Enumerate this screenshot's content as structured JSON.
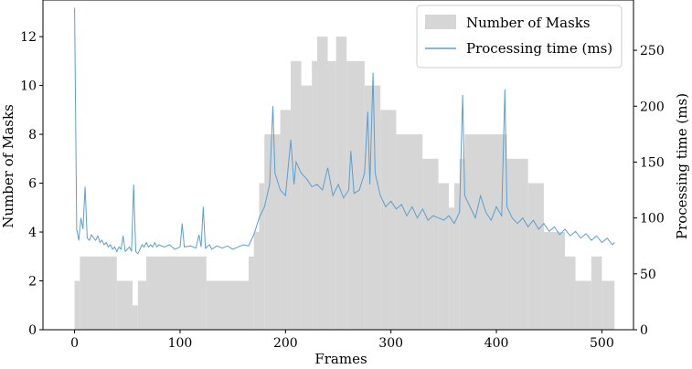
{
  "chart_data": {
    "type": "bar+line",
    "xlabel": "Frames",
    "ylabel_left": "Number of Masks",
    "ylabel_right": "Processing time (ms)",
    "xlim": [
      -30,
      530
    ],
    "ylim_left": [
      0,
      13.5
    ],
    "ylim_right": [
      0,
      295
    ],
    "x_ticks": [
      0,
      100,
      200,
      300,
      400,
      500
    ],
    "y_left_ticks": [
      0,
      2,
      4,
      6,
      8,
      10,
      12
    ],
    "y_right_ticks": [
      0,
      50,
      100,
      150,
      200,
      250
    ],
    "legend": {
      "position": "top-right",
      "entries": [
        "Number of Masks",
        "Processing time (ms)"
      ]
    },
    "colors": {
      "masks": "#d6d6d6",
      "time": "#5b9fd0"
    },
    "series": [
      {
        "name": "Number of Masks",
        "kind": "bar",
        "segments": [
          {
            "from": 0,
            "to": 5,
            "value": 2
          },
          {
            "from": 5,
            "to": 40,
            "value": 3
          },
          {
            "from": 40,
            "to": 55,
            "value": 2
          },
          {
            "from": 55,
            "to": 60,
            "value": 1
          },
          {
            "from": 60,
            "to": 68,
            "value": 2
          },
          {
            "from": 68,
            "to": 125,
            "value": 3
          },
          {
            "from": 125,
            "to": 165,
            "value": 2
          },
          {
            "from": 165,
            "to": 170,
            "value": 3
          },
          {
            "from": 170,
            "to": 175,
            "value": 4
          },
          {
            "from": 175,
            "to": 180,
            "value": 6
          },
          {
            "from": 180,
            "to": 195,
            "value": 8
          },
          {
            "from": 195,
            "to": 205,
            "value": 9
          },
          {
            "from": 205,
            "to": 215,
            "value": 11
          },
          {
            "from": 215,
            "to": 225,
            "value": 10
          },
          {
            "from": 225,
            "to": 230,
            "value": 11
          },
          {
            "from": 230,
            "to": 240,
            "value": 12
          },
          {
            "from": 240,
            "to": 248,
            "value": 11
          },
          {
            "from": 248,
            "to": 258,
            "value": 12
          },
          {
            "from": 258,
            "to": 275,
            "value": 11
          },
          {
            "from": 275,
            "to": 290,
            "value": 10
          },
          {
            "from": 290,
            "to": 305,
            "value": 9
          },
          {
            "from": 305,
            "to": 330,
            "value": 8
          },
          {
            "from": 330,
            "to": 345,
            "value": 7
          },
          {
            "from": 345,
            "to": 355,
            "value": 6
          },
          {
            "from": 355,
            "to": 360,
            "value": 5
          },
          {
            "from": 360,
            "to": 365,
            "value": 6
          },
          {
            "from": 365,
            "to": 370,
            "value": 7
          },
          {
            "from": 370,
            "to": 410,
            "value": 8
          },
          {
            "from": 410,
            "to": 430,
            "value": 7
          },
          {
            "from": 430,
            "to": 445,
            "value": 6
          },
          {
            "from": 445,
            "to": 465,
            "value": 4
          },
          {
            "from": 465,
            "to": 475,
            "value": 3
          },
          {
            "from": 475,
            "to": 490,
            "value": 2
          },
          {
            "from": 490,
            "to": 500,
            "value": 3
          },
          {
            "from": 500,
            "to": 512,
            "value": 2
          }
        ]
      },
      {
        "name": "Processing time (ms)",
        "kind": "line",
        "points": [
          [
            0,
            288
          ],
          [
            2,
            90
          ],
          [
            4,
            80
          ],
          [
            6,
            100
          ],
          [
            8,
            90
          ],
          [
            10,
            128
          ],
          [
            12,
            82
          ],
          [
            14,
            80
          ],
          [
            16,
            85
          ],
          [
            18,
            82
          ],
          [
            20,
            80
          ],
          [
            22,
            84
          ],
          [
            24,
            78
          ],
          [
            26,
            80
          ],
          [
            28,
            76
          ],
          [
            30,
            78
          ],
          [
            32,
            74
          ],
          [
            34,
            76
          ],
          [
            36,
            72
          ],
          [
            38,
            74
          ],
          [
            40,
            70
          ],
          [
            42,
            74
          ],
          [
            44,
            72
          ],
          [
            46,
            84
          ],
          [
            48,
            70
          ],
          [
            50,
            72
          ],
          [
            52,
            74
          ],
          [
            54,
            70
          ],
          [
            56,
            130
          ],
          [
            58,
            70
          ],
          [
            60,
            68
          ],
          [
            62,
            72
          ],
          [
            64,
            76
          ],
          [
            66,
            74
          ],
          [
            68,
            78
          ],
          [
            70,
            74
          ],
          [
            72,
            76
          ],
          [
            74,
            74
          ],
          [
            76,
            78
          ],
          [
            78,
            74
          ],
          [
            80,
            76
          ],
          [
            85,
            74
          ],
          [
            90,
            76
          ],
          [
            95,
            72
          ],
          [
            100,
            74
          ],
          [
            102,
            95
          ],
          [
            104,
            74
          ],
          [
            110,
            75
          ],
          [
            115,
            73
          ],
          [
            118,
            85
          ],
          [
            120,
            74
          ],
          [
            122,
            110
          ],
          [
            124,
            73
          ],
          [
            128,
            76
          ],
          [
            130,
            72
          ],
          [
            135,
            75
          ],
          [
            140,
            73
          ],
          [
            145,
            75
          ],
          [
            150,
            72
          ],
          [
            155,
            74
          ],
          [
            160,
            76
          ],
          [
            165,
            75
          ],
          [
            170,
            85
          ],
          [
            175,
            100
          ],
          [
            180,
            110
          ],
          [
            185,
            130
          ],
          [
            188,
            200
          ],
          [
            190,
            140
          ],
          [
            195,
            125
          ],
          [
            200,
            120
          ],
          [
            205,
            170
          ],
          [
            208,
            130
          ],
          [
            210,
            150
          ],
          [
            215,
            140
          ],
          [
            220,
            135
          ],
          [
            225,
            128
          ],
          [
            230,
            130
          ],
          [
            235,
            125
          ],
          [
            240,
            145
          ],
          [
            245,
            120
          ],
          [
            250,
            130
          ],
          [
            255,
            118
          ],
          [
            260,
            125
          ],
          [
            262,
            160
          ],
          [
            265,
            122
          ],
          [
            270,
            125
          ],
          [
            275,
            140
          ],
          [
            278,
            195
          ],
          [
            280,
            130
          ],
          [
            283,
            230
          ],
          [
            285,
            140
          ],
          [
            290,
            120
          ],
          [
            295,
            110
          ],
          [
            300,
            115
          ],
          [
            305,
            108
          ],
          [
            310,
            112
          ],
          [
            315,
            102
          ],
          [
            320,
            110
          ],
          [
            325,
            100
          ],
          [
            330,
            108
          ],
          [
            335,
            98
          ],
          [
            340,
            102
          ],
          [
            345,
            100
          ],
          [
            350,
            98
          ],
          [
            355,
            102
          ],
          [
            360,
            95
          ],
          [
            365,
            105
          ],
          [
            368,
            210
          ],
          [
            370,
            120
          ],
          [
            375,
            110
          ],
          [
            380,
            100
          ],
          [
            385,
            120
          ],
          [
            390,
            105
          ],
          [
            395,
            98
          ],
          [
            400,
            110
          ],
          [
            405,
            102
          ],
          [
            408,
            215
          ],
          [
            410,
            110
          ],
          [
            415,
            100
          ],
          [
            420,
            95
          ],
          [
            425,
            100
          ],
          [
            430,
            92
          ],
          [
            435,
            98
          ],
          [
            440,
            90
          ],
          [
            445,
            95
          ],
          [
            450,
            88
          ],
          [
            455,
            92
          ],
          [
            460,
            85
          ],
          [
            465,
            90
          ],
          [
            470,
            84
          ],
          [
            475,
            88
          ],
          [
            480,
            82
          ],
          [
            485,
            86
          ],
          [
            490,
            80
          ],
          [
            495,
            84
          ],
          [
            500,
            78
          ],
          [
            505,
            82
          ],
          [
            510,
            76
          ],
          [
            512,
            78
          ]
        ]
      }
    ]
  }
}
